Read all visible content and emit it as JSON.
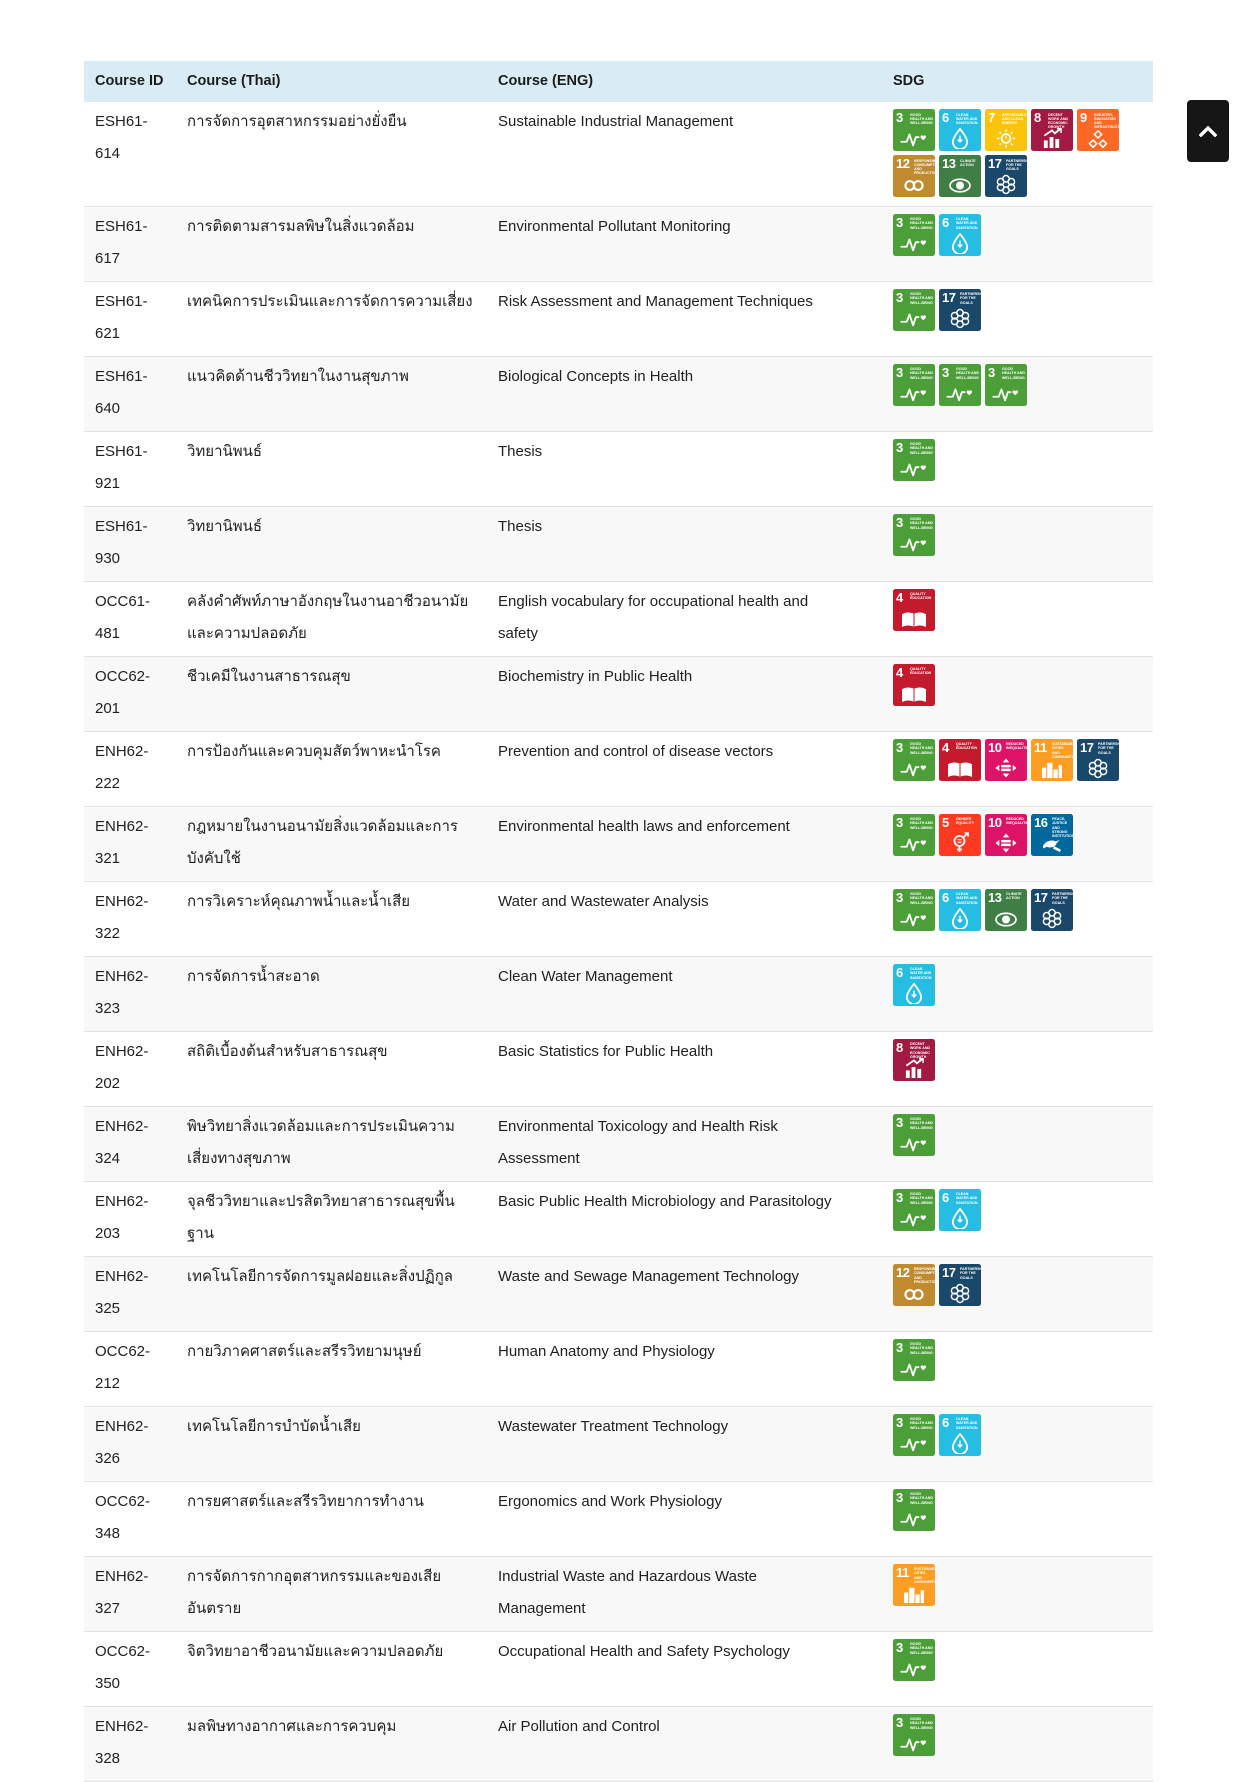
{
  "header": {
    "columns": [
      "Course ID",
      "Course (Thai)",
      "Course (ENG)",
      "SDG"
    ]
  },
  "table": {
    "rows": [
      {
        "id": "ESH61-614",
        "thai": "การจัดการอุตสาหกรรมอย่างยั่งยืน",
        "eng": "Sustainable Industrial Management",
        "sdgs": [
          3,
          6,
          7,
          8,
          9,
          12,
          13,
          17
        ]
      },
      {
        "id": "ESH61-617",
        "thai": "การติดตามสารมลพิษในสิ่งแวดล้อม",
        "eng": "Environmental Pollutant Monitoring",
        "sdgs": [
          3,
          6
        ]
      },
      {
        "id": "ESH61-621",
        "thai": "เทคนิคการประเมินและการจัดการความเสี่ยง",
        "eng": "Risk Assessment and Management Techniques",
        "sdgs": [
          3,
          17
        ]
      },
      {
        "id": "ESH61-640",
        "thai": "แนวคิดด้านชีววิทยาในงานสุขภาพ",
        "eng": "Biological Concepts in Health",
        "sdgs": [
          3,
          3,
          3
        ]
      },
      {
        "id": "ESH61-921",
        "thai": "วิทยานิพนธ์",
        "eng": "Thesis",
        "sdgs": [
          3
        ]
      },
      {
        "id": "ESH61-930",
        "thai": "วิทยานิพนธ์",
        "eng": "Thesis",
        "sdgs": [
          3
        ]
      },
      {
        "id": "OCC61-481",
        "thai": "คลังคำศัพท์ภาษาอังกฤษในงานอาชีวอนามัยและความปลอดภัย",
        "eng": "English vocabulary for occupational health and safety",
        "sdgs": [
          4
        ]
      },
      {
        "id": "OCC62-201",
        "thai": "ชีวเคมีในงานสาธารณสุข",
        "eng": "Biochemistry in Public Health",
        "sdgs": [
          4
        ]
      },
      {
        "id": "ENH62-222",
        "thai": "การป้องกันและควบคุมสัตว์พาหะนำโรค",
        "eng": "Prevention and control of disease vectors",
        "sdgs": [
          3,
          4,
          10,
          11,
          17
        ]
      },
      {
        "id": "ENH62-321",
        "thai": "กฎหมายในงานอนามัยสิ่งแวดล้อมและการบังคับใช้",
        "eng": "Environmental health laws and enforcement",
        "sdgs": [
          3,
          5,
          10,
          16
        ]
      },
      {
        "id": "ENH62-322",
        "thai": "การวิเคราะห์คุณภาพน้ำและน้ำเสีย",
        "eng": "Water and Wastewater Analysis",
        "sdgs": [
          3,
          6,
          13,
          17
        ]
      },
      {
        "id": "ENH62-323",
        "thai": "การจัดการน้ำสะอาด",
        "eng": "Clean Water Management",
        "sdgs": [
          6
        ]
      },
      {
        "id": "ENH62-202",
        "thai": "สถิติเบื้องต้นสำหรับสาธารณสุข",
        "eng": "Basic Statistics for Public Health",
        "sdgs": [
          8
        ]
      },
      {
        "id": "ENH62-324",
        "thai": "พิษวิทยาสิ่งแวดล้อมและการประเมินความเสี่ยงทางสุขภาพ",
        "eng": "Environmental Toxicology and Health Risk Assessment",
        "sdgs": [
          3
        ]
      },
      {
        "id": "ENH62-203",
        "thai": "จุลชีววิทยาและปรสิตวิทยาสาธารณสุขพื้นฐาน",
        "eng": "Basic Public Health Microbiology and Parasitology",
        "sdgs": [
          3,
          6
        ]
      },
      {
        "id": "ENH62-325",
        "thai": "เทคโนโลยีการจัดการมูลฝอยและสิ่งปฏิกูล",
        "eng": "Waste and Sewage Management Technology",
        "sdgs": [
          12,
          17
        ]
      },
      {
        "id": "OCC62-212",
        "thai": "กายวิภาคศาสตร์และสรีรวิทยามนุษย์",
        "eng": "Human Anatomy and Physiology",
        "sdgs": [
          3
        ]
      },
      {
        "id": "ENH62-326",
        "thai": "เทคโนโลยีการบำบัดน้ำเสีย",
        "eng": "Wastewater Treatment Technology",
        "sdgs": [
          3,
          6
        ]
      },
      {
        "id": "OCC62-348",
        "thai": "การยศาสตร์และสรีรวิทยาการทำงาน",
        "eng": "Ergonomics and Work Physiology",
        "sdgs": [
          3
        ]
      },
      {
        "id": "ENH62-327",
        "thai": "การจัดการกากอุตสาหกรรมและของเสียอันตราย",
        "eng": "Industrial Waste and Hazardous Waste Management",
        "sdgs": [
          11
        ]
      },
      {
        "id": "OCC62-350",
        "thai": "จิตวิทยาอาชีวอนามัยและความปลอดภัย",
        "eng": "Occupational Health and Safety Psychology",
        "sdgs": [
          3
        ]
      },
      {
        "id": "ENH62-328",
        "thai": "มลพิษทางอากาศและการควบคุม",
        "eng": "Air Pollution and Control",
        "sdgs": [
          3
        ]
      }
    ]
  },
  "sdg_meta": {
    "3": {
      "label": "Good Health and Well-Being",
      "color": "#4C9F38"
    },
    "4": {
      "label": "Quality Education",
      "color": "#C5192D"
    },
    "5": {
      "label": "Gender Equality",
      "color": "#FF3A21"
    },
    "6": {
      "label": "Clean Water and Sanitation",
      "color": "#26BDE2"
    },
    "7": {
      "label": "Affordable and Clean Energy",
      "color": "#FCC30B"
    },
    "8": {
      "label": "Decent Work and Economic Growth",
      "color": "#A21942"
    },
    "9": {
      "label": "Industry, Innovation and Infrastructure",
      "color": "#FD6925"
    },
    "10": {
      "label": "Reduced Inequalities",
      "color": "#DD1367"
    },
    "11": {
      "label": "Sustainable Cities and Communities",
      "color": "#FD9D24"
    },
    "12": {
      "label": "Responsible Consumption and Production",
      "color": "#BF8B2E"
    },
    "13": {
      "label": "Climate Action",
      "color": "#3F7E44"
    },
    "16": {
      "label": "Peace, Justice and Strong Institutions",
      "color": "#00689D"
    },
    "17": {
      "label": "Partnerships for the Goals",
      "color": "#19486A"
    }
  },
  "scroll_top_button": {
    "icon": "chevron-up"
  },
  "colors": {
    "header_bg": "#d9ecf5",
    "stripe": "#f8f8f8",
    "divider": "#e2e2e2",
    "text": "#212121",
    "button_bg": "#161616"
  }
}
